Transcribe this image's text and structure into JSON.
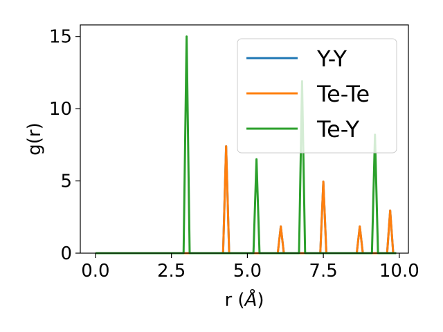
{
  "chart_data": {
    "type": "line",
    "xlabel_prefix": "r (",
    "xlabel_unit": "Å",
    "xlabel_suffix": ")",
    "ylabel": "g(r)",
    "xlim": [
      -0.5,
      10.3
    ],
    "ylim": [
      0,
      15.8
    ],
    "xticks": [
      0.0,
      2.5,
      5.0,
      7.5,
      10.0
    ],
    "xtick_labels": [
      "0.0",
      "2.5",
      "5.0",
      "7.5",
      "10.0"
    ],
    "yticks": [
      0,
      5,
      10,
      15
    ],
    "ytick_labels": [
      "0",
      "5",
      "10",
      "15"
    ],
    "grid": false,
    "legend_position": "top-right",
    "series": [
      {
        "name": "Y-Y",
        "color": "#1f77b4",
        "x": [
          0.0,
          4.2,
          4.3,
          4.4,
          6.0,
          6.1,
          6.2,
          7.4,
          7.5,
          7.6,
          8.6,
          8.7,
          8.8,
          9.6,
          9.7,
          9.8,
          9.9
        ],
        "y": [
          0,
          0,
          7.4,
          0,
          0,
          1.85,
          0,
          0,
          4.95,
          0,
          0,
          1.85,
          0,
          0,
          2.95,
          0,
          0
        ]
      },
      {
        "name": "Te-Te",
        "color": "#ff7f0e",
        "x": [
          0.0,
          4.2,
          4.3,
          4.4,
          6.0,
          6.1,
          6.2,
          7.4,
          7.5,
          7.6,
          8.6,
          8.7,
          8.8,
          9.6,
          9.7,
          9.8,
          9.9
        ],
        "y": [
          0,
          0,
          7.4,
          0,
          0,
          1.85,
          0,
          0,
          4.95,
          0,
          0,
          1.85,
          0,
          0,
          2.95,
          0,
          0
        ]
      },
      {
        "name": "Te-Y",
        "color": "#2ca02c",
        "x": [
          0.0,
          2.9,
          3.0,
          3.1,
          5.2,
          5.3,
          5.4,
          6.7,
          6.8,
          6.9,
          9.1,
          9.2,
          9.3,
          9.9
        ],
        "y": [
          0,
          0,
          15.0,
          0,
          0,
          6.5,
          0,
          0,
          11.9,
          0,
          0,
          8.2,
          0,
          0
        ]
      }
    ]
  }
}
